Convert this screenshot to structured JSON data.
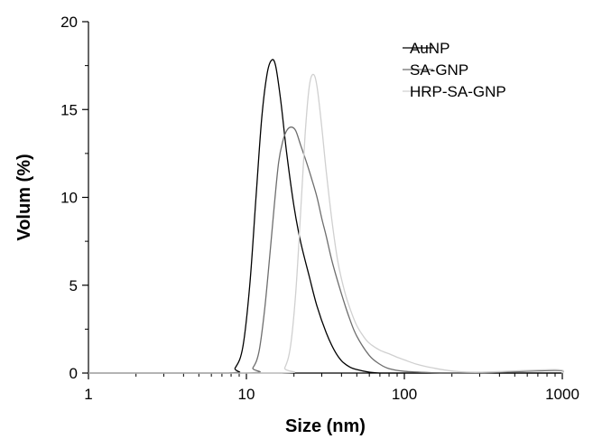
{
  "chart_data": {
    "type": "line",
    "title": "",
    "xlabel": "Size (nm)",
    "ylabel": "Volum (%)",
    "xscale": "log",
    "xlim": [
      1,
      1000
    ],
    "ylim": [
      0,
      20
    ],
    "xticks": [
      1,
      10,
      100,
      1000
    ],
    "xtick_labels": [
      "1",
      "10",
      "100",
      "1000"
    ],
    "yticks": [
      0,
      5,
      10,
      15,
      20
    ],
    "ytick_labels": [
      "0",
      "5",
      "10",
      "15",
      "20"
    ],
    "grid": false,
    "legend_position": "top-right",
    "series": [
      {
        "name": "AuNP",
        "color": "#000000",
        "x": [
          1,
          7.5,
          8.5,
          9.5,
          10.5,
          11.5,
          12.5,
          13.5,
          14.4,
          15.3,
          16.5,
          18,
          20,
          22,
          25,
          28,
          32,
          36,
          40,
          45,
          50,
          60,
          70,
          80,
          100,
          1000
        ],
        "y": [
          0,
          0,
          0.3,
          1.5,
          5,
          10,
          14.5,
          17,
          17.8,
          17.5,
          15.5,
          12.5,
          9.5,
          7.5,
          5.5,
          3.8,
          2.3,
          1.3,
          0.7,
          0.35,
          0.2,
          0.05,
          0,
          0,
          0,
          0
        ]
      },
      {
        "name": "SA-GNP",
        "color": "#6e6e6e",
        "x": [
          1,
          10,
          11,
          12,
          13,
          14,
          15,
          16,
          17,
          18,
          19.2,
          20.5,
          22,
          24,
          26,
          28,
          30,
          32,
          35,
          40,
          45,
          50,
          60,
          70,
          80,
          100,
          150,
          200,
          300,
          900,
          1000
        ],
        "y": [
          0,
          0,
          0.3,
          1.2,
          3.5,
          6.5,
          9.5,
          12,
          13.2,
          13.8,
          14,
          13.8,
          13,
          12,
          11,
          10,
          8.8,
          7.8,
          6.3,
          4.5,
          3.1,
          2.1,
          1,
          0.5,
          0.25,
          0.1,
          0.02,
          0,
          0,
          0.15,
          0
        ]
      },
      {
        "name": "HRP-SA-GNP",
        "color": "#d0d0d0",
        "x": [
          1,
          16,
          17.5,
          19,
          20.5,
          22,
          23.5,
          25,
          26.5,
          28,
          30,
          32,
          35,
          38,
          42,
          46,
          50,
          55,
          60,
          70,
          80,
          90,
          100,
          120,
          150,
          200,
          300,
          900,
          1000
        ],
        "y": [
          0,
          0,
          0.3,
          1.5,
          4.5,
          9,
          13.5,
          16.3,
          17,
          16.3,
          14,
          11.5,
          8.5,
          6.3,
          4.6,
          3.5,
          2.7,
          2.1,
          1.7,
          1.3,
          1.1,
          0.9,
          0.75,
          0.5,
          0.3,
          0.12,
          0.05,
          0.2,
          0
        ]
      }
    ]
  }
}
